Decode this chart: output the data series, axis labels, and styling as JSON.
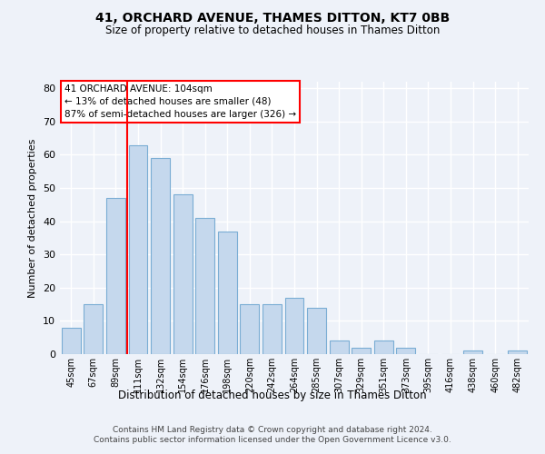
{
  "title": "41, ORCHARD AVENUE, THAMES DITTON, KT7 0BB",
  "subtitle": "Size of property relative to detached houses in Thames Ditton",
  "xlabel": "Distribution of detached houses by size in Thames Ditton",
  "ylabel": "Number of detached properties",
  "bar_labels": [
    "45sqm",
    "67sqm",
    "89sqm",
    "111sqm",
    "132sqm",
    "154sqm",
    "176sqm",
    "198sqm",
    "220sqm",
    "242sqm",
    "264sqm",
    "285sqm",
    "307sqm",
    "329sqm",
    "351sqm",
    "373sqm",
    "395sqm",
    "416sqm",
    "438sqm",
    "460sqm",
    "482sqm"
  ],
  "bar_values": [
    8,
    15,
    47,
    63,
    59,
    48,
    41,
    37,
    15,
    15,
    17,
    14,
    4,
    2,
    4,
    2,
    0,
    0,
    1,
    0,
    1
  ],
  "bar_color": "#c5d8ed",
  "bar_edge_color": "#7aadd4",
  "vline_index": 2.5,
  "vline_color": "red",
  "annotation_title": "41 ORCHARD AVENUE: 104sqm",
  "annotation_line1": "← 13% of detached houses are smaller (48)",
  "annotation_line2": "87% of semi-detached houses are larger (326) →",
  "ylim": [
    0,
    82
  ],
  "yticks": [
    0,
    10,
    20,
    30,
    40,
    50,
    60,
    70,
    80
  ],
  "bg_color": "#eef2f9",
  "grid_color": "#ffffff",
  "footer1": "Contains HM Land Registry data © Crown copyright and database right 2024.",
  "footer2": "Contains public sector information licensed under the Open Government Licence v3.0."
}
